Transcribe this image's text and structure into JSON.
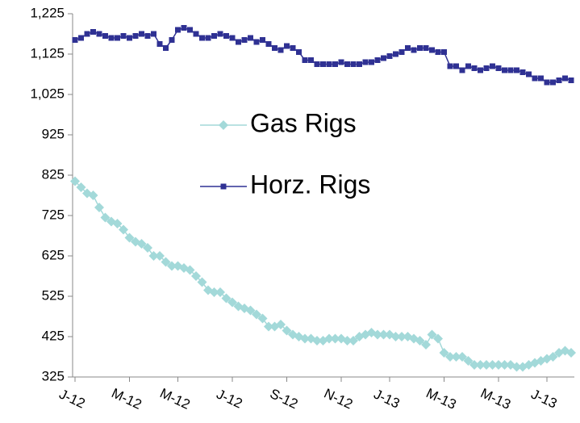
{
  "chart_data": {
    "type": "line",
    "categories": [
      "J-12",
      null,
      null,
      null,
      null,
      null,
      null,
      null,
      null,
      "M-12",
      null,
      null,
      null,
      null,
      null,
      null,
      null,
      "M-12",
      null,
      null,
      null,
      null,
      null,
      null,
      null,
      null,
      "J-12",
      null,
      null,
      null,
      null,
      null,
      null,
      null,
      null,
      "S-12",
      null,
      null,
      null,
      null,
      null,
      null,
      null,
      null,
      "N-12",
      null,
      null,
      null,
      null,
      null,
      null,
      null,
      "J-13",
      null,
      null,
      null,
      null,
      null,
      null,
      null,
      null,
      "M-13",
      null,
      null,
      null,
      null,
      null,
      null,
      null,
      null,
      "M-13",
      null,
      null,
      null,
      null,
      null,
      null,
      null,
      "J-13",
      null,
      null,
      null,
      null
    ],
    "series": [
      {
        "name": "Gas Rigs",
        "color": "#a3d9d9",
        "marker": "diamond",
        "values": [
          810,
          795,
          780,
          775,
          745,
          720,
          710,
          705,
          690,
          670,
          660,
          655,
          645,
          625,
          625,
          610,
          600,
          600,
          595,
          590,
          575,
          560,
          540,
          535,
          535,
          520,
          510,
          500,
          495,
          490,
          480,
          470,
          450,
          450,
          455,
          440,
          430,
          425,
          420,
          420,
          415,
          415,
          420,
          420,
          420,
          415,
          415,
          425,
          430,
          435,
          430,
          430,
          430,
          425,
          425,
          425,
          420,
          415,
          405,
          430,
          420,
          385,
          375,
          375,
          375,
          365,
          355,
          355,
          355,
          355,
          355,
          355,
          355,
          350,
          350,
          355,
          360,
          365,
          370,
          375,
          385,
          390,
          385
        ]
      },
      {
        "name": "Horz. Rigs",
        "color": "#2f3193",
        "marker": "square",
        "values": [
          1160,
          1165,
          1175,
          1180,
          1175,
          1170,
          1165,
          1165,
          1170,
          1165,
          1170,
          1175,
          1170,
          1175,
          1150,
          1140,
          1160,
          1185,
          1190,
          1185,
          1175,
          1165,
          1165,
          1170,
          1175,
          1170,
          1165,
          1155,
          1160,
          1165,
          1155,
          1160,
          1150,
          1140,
          1135,
          1145,
          1140,
          1130,
          1110,
          1110,
          1100,
          1100,
          1100,
          1100,
          1105,
          1100,
          1100,
          1100,
          1105,
          1105,
          1110,
          1115,
          1120,
          1125,
          1130,
          1140,
          1135,
          1140,
          1140,
          1135,
          1130,
          1130,
          1095,
          1095,
          1085,
          1095,
          1090,
          1085,
          1090,
          1095,
          1090,
          1085,
          1085,
          1085,
          1080,
          1075,
          1065,
          1065,
          1055,
          1055,
          1060,
          1065,
          1060
        ]
      }
    ],
    "ylim": [
      325,
      1225
    ],
    "yticks": [
      325,
      425,
      525,
      625,
      725,
      825,
      925,
      {
        "value": 1025,
        "label": "1,025"
      },
      {
        "value": 1125,
        "label": "1,125"
      },
      {
        "value": 1225,
        "label": "1,225"
      }
    ]
  }
}
